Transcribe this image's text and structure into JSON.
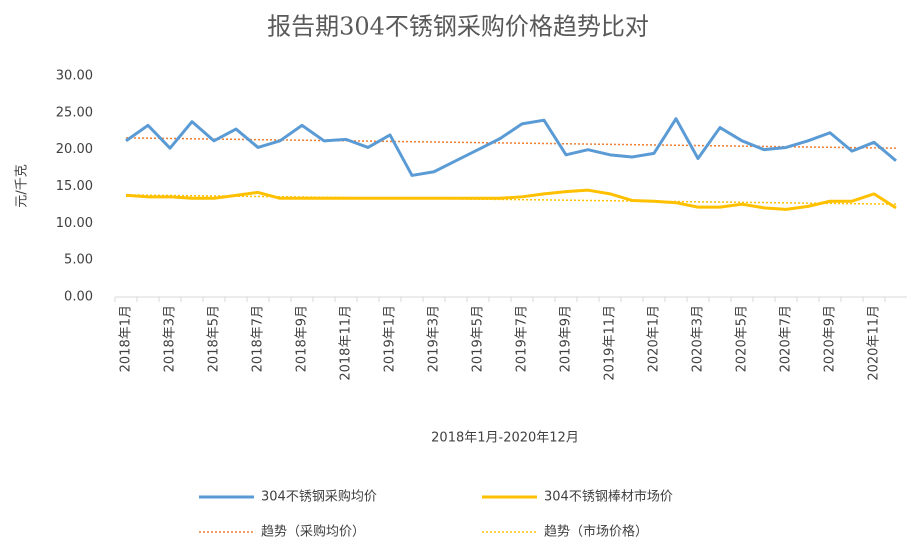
{
  "chart_data": {
    "type": "line",
    "title": "报告期304不锈钢采购价格趋势比对",
    "x_label": "2018年1月-2020年12月",
    "y_label": "元/千克",
    "categories": [
      "2018年1月",
      null,
      "2018年3月",
      null,
      "2018年5月",
      null,
      "2018年7月",
      null,
      "2018年9月",
      null,
      "2018年11月",
      null,
      "2019年1月",
      null,
      "2019年3月",
      null,
      "2019年5月",
      null,
      "2019年7月",
      null,
      "2019年9月",
      null,
      "2019年11月",
      null,
      "2020年1月",
      null,
      "2020年3月",
      null,
      "2020年5月",
      null,
      "2020年7月",
      null,
      "2020年9月",
      null,
      "2020年11月",
      null
    ],
    "ylim": [
      0,
      30
    ],
    "yticks": [
      {
        "value": 0,
        "label": "0.00"
      },
      {
        "value": 5,
        "label": "5.00"
      },
      {
        "value": 10,
        "label": "10.00"
      },
      {
        "value": 15,
        "label": "15.00"
      },
      {
        "value": 20,
        "label": "20.00"
      },
      {
        "value": 25,
        "label": "25.00"
      },
      {
        "value": 30,
        "label": "30.00"
      }
    ],
    "grid": false,
    "legend": "bottom",
    "series": [
      {
        "name": "304不锈钢采购均价",
        "color": "#5b9bd5",
        "style": "solid",
        "values": [
          21.2,
          23.3,
          20.2,
          23.8,
          21.2,
          22.8,
          20.3,
          21.2,
          23.3,
          21.2,
          21.4,
          20.3,
          22.0,
          16.5,
          17.0,
          18.5,
          20.0,
          21.5,
          23.5,
          24.0,
          19.3,
          20.0,
          19.3,
          19.0,
          19.5,
          24.2,
          18.8,
          23.0,
          21.2,
          20.0,
          20.3,
          21.2,
          22.3,
          19.8,
          21.0,
          18.5
        ]
      },
      {
        "name": "304不锈钢棒材市场价",
        "color": "#ffc000",
        "style": "solid",
        "values": [
          13.8,
          13.6,
          13.6,
          13.4,
          13.4,
          13.8,
          14.2,
          13.4,
          13.4,
          13.4,
          13.4,
          13.4,
          13.4,
          13.4,
          13.4,
          13.4,
          13.4,
          13.4,
          13.6,
          14.0,
          14.3,
          14.5,
          14.0,
          13.1,
          13.0,
          12.8,
          12.2,
          12.2,
          12.6,
          12.1,
          11.9,
          12.3,
          13.0,
          13.0,
          14.0,
          12.1
        ]
      },
      {
        "name": "趋势（采购均价）",
        "color": "#ed7d31",
        "style": "dotted",
        "values": [
          21.6,
          21.56,
          21.52,
          21.48,
          21.44,
          21.4,
          21.36,
          21.32,
          21.28,
          21.24,
          21.2,
          21.16,
          21.12,
          21.08,
          21.04,
          21.0,
          20.96,
          20.92,
          20.88,
          20.84,
          20.8,
          20.76,
          20.72,
          20.68,
          20.64,
          20.6,
          20.56,
          20.52,
          20.48,
          20.44,
          20.4,
          20.36,
          20.32,
          20.28,
          20.24,
          20.2
        ]
      },
      {
        "name": "趋势（市场价格）",
        "color": "#ffc000",
        "style": "dotted",
        "values": [
          13.86,
          13.82,
          13.79,
          13.75,
          13.72,
          13.68,
          13.64,
          13.61,
          13.57,
          13.54,
          13.5,
          13.46,
          13.43,
          13.39,
          13.36,
          13.32,
          13.28,
          13.25,
          13.21,
          13.18,
          13.14,
          13.1,
          13.07,
          13.03,
          13.0,
          12.96,
          12.92,
          12.89,
          12.85,
          12.82,
          12.78,
          12.74,
          12.71,
          12.67,
          12.64,
          12.6
        ]
      }
    ]
  }
}
